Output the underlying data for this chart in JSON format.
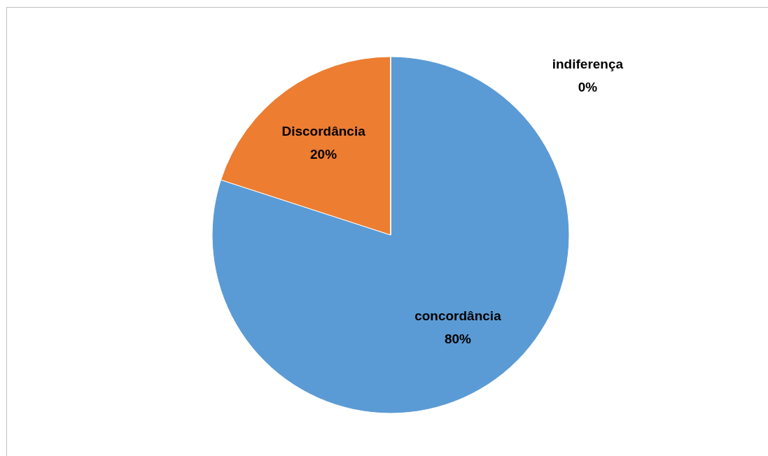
{
  "chart_data": {
    "type": "pie",
    "categories": [
      "concordância",
      "Discordância",
      "indiferença"
    ],
    "values": [
      80,
      20,
      0
    ],
    "colors": [
      "#5b9bd5",
      "#ed7d31",
      "#a5a5a5"
    ],
    "value_labels": [
      "80%",
      "20%",
      "0%"
    ],
    "legend": false
  }
}
